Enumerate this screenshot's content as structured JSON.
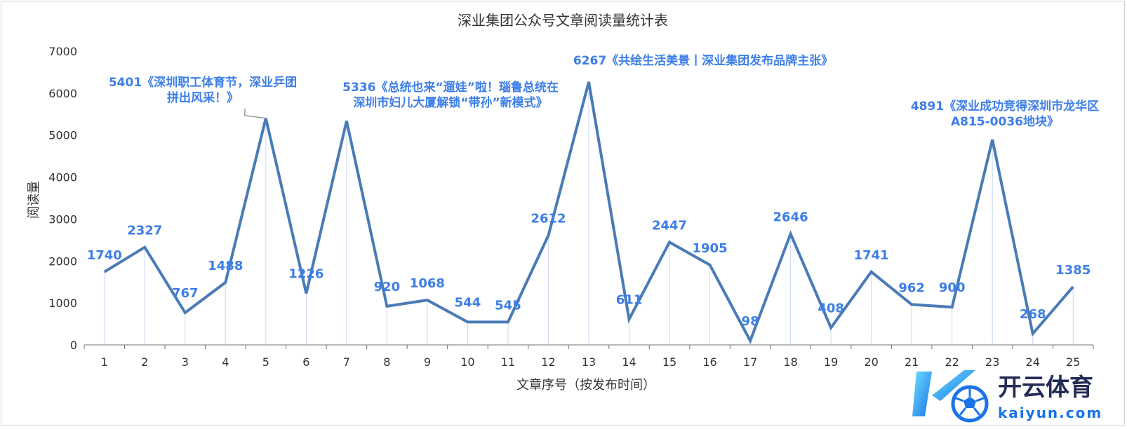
{
  "chart_data": {
    "type": "line",
    "title": "深业集团公众号文章阅读量统计表",
    "xlabel": "文章序号（按发布时间）",
    "ylabel": "阅读量",
    "ylim": [
      0,
      7000
    ],
    "yticks": [
      "0",
      "1000",
      "2000",
      "3000",
      "4000",
      "5000",
      "6000",
      "7000"
    ],
    "categories": [
      "1",
      "2",
      "3",
      "4",
      "5",
      "6",
      "7",
      "8",
      "9",
      "10",
      "11",
      "12",
      "13",
      "14",
      "15",
      "16",
      "17",
      "18",
      "19",
      "20",
      "21",
      "22",
      "23",
      "24",
      "25"
    ],
    "values": [
      1740,
      2327,
      767,
      1488,
      5401,
      1226,
      5336,
      920,
      1068,
      544,
      545,
      2612,
      6267,
      611,
      2447,
      1905,
      98,
      2646,
      408,
      1741,
      962,
      900,
      4891,
      268,
      1385
    ],
    "line_color": "#4a7bb7",
    "label_color": "#3d7ee8",
    "annotations": [
      {
        "index": 4,
        "lines": [
          "5401《深圳职工体育节，深业乒团",
          "拼出风采！》"
        ]
      },
      {
        "index": 6,
        "lines": [
          "5336《总统也来“遛娃”啦！瑙鲁总统在",
          "深圳市妇儿大厦解锁“带孙”新模式》"
        ]
      },
      {
        "index": 12,
        "lines": [
          "6267《共绘生活美景丨深业集团发布品牌主张》"
        ]
      },
      {
        "index": 22,
        "lines": [
          "4891《深业成功竞得深圳市龙华区",
          "A815-0036地块》"
        ]
      }
    ]
  },
  "watermark": {
    "logo_text": "开云体育",
    "url_text": "kaiyun.com",
    "colors": {
      "primary": "#1a73e8",
      "accent": "#18b8e0"
    },
    "icon": "k-soccer-ball-logo"
  }
}
